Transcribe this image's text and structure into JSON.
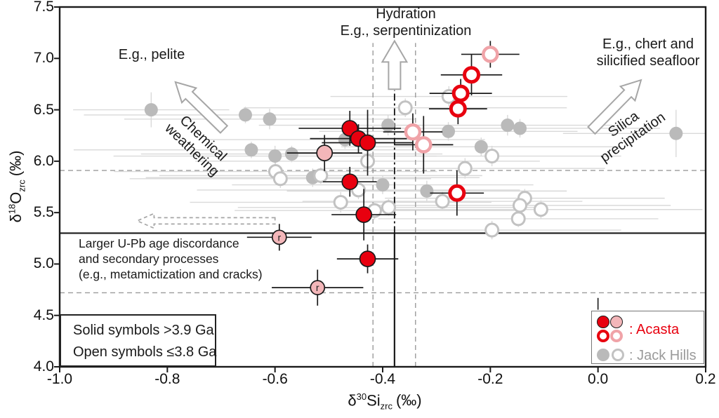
{
  "colors": {
    "red": "#e8000f",
    "pink": "#f3b6b9",
    "pinkRing": "#f0a3a8",
    "gray": "#bababa",
    "grayRing": "#c2c2c2",
    "grayBar": "#d9d9d9",
    "black": "#1a1a1a",
    "dash": "#9b9b9b",
    "arrowOutline": "#a6a6a6"
  },
  "axes": {
    "x": {
      "delta": "δ",
      "sup": "30",
      "elem": "Si",
      "sub": "zrc",
      "unit": "(‰)"
    },
    "y": {
      "delta": "δ",
      "sup": "18",
      "elem": "O",
      "sub": "zrc",
      "unit": "(‰)"
    }
  },
  "annotations": {
    "pelite": "E.g., pelite",
    "hydration_line1": "Hydration",
    "hydration_line2": "E.g., serpentinization",
    "chert_line1": "E.g., chert and",
    "chert_line2": "silicified seafloor",
    "chemical_line1": "Chemical",
    "chemical_line2": "weathering",
    "silica_line1": "Silica",
    "silica_line2": "precipitation",
    "discordance_line1": "Larger U-Pb age discordance",
    "discordance_line2": "and secondary processes",
    "discordance_line3": "(e.g., metamictization and cracks)"
  },
  "info_box": {
    "line1": "Solid symbols >3.9 Ga",
    "line2": "Open symbols ≤3.8 Ga"
  },
  "legend": {
    "acasta": ": Acasta",
    "jack_hills": ": Jack Hills"
  },
  "chart_data": {
    "type": "scatter",
    "title": "",
    "xlabel": "δ30Si_zrc (‰)",
    "ylabel": "δ18O_zrc (‰)",
    "xlim": [
      -1.0,
      0.2
    ],
    "ylim": [
      4.0,
      7.5
    ],
    "grid": false,
    "x_ticks": {
      "values": [
        -1.0,
        -0.8,
        -0.6,
        -0.4,
        -0.2,
        0.0,
        0.2
      ],
      "labels": [
        "-1.0",
        "-0.8",
        "-0.6",
        "-0.4",
        "-0.2",
        "0.0",
        "0.2"
      ]
    },
    "y_ticks": {
      "values": [
        4.0,
        4.5,
        5.0,
        5.5,
        6.0,
        6.5,
        7.0,
        7.5
      ],
      "labels": [
        "4.0",
        "4.5",
        "5.0",
        "5.5",
        "6.0",
        "6.5",
        "7.0",
        "7.5"
      ]
    },
    "series": [
      {
        "id": "jackhills-solid",
        "name": "Jack Hills >3.9 Ga (solid gray)",
        "layer": "gray",
        "style": "filled",
        "fill": "#bababa",
        "bar": "#d9d9d9",
        "bar_w": 1.4,
        "r": 9.5,
        "points": [
          [
            -0.83,
            6.5,
            0.145,
            0.17
          ],
          [
            -0.655,
            6.45,
            0.3,
            0.08
          ],
          [
            -0.61,
            6.41,
            0.27,
            0.1
          ],
          [
            -0.644,
            6.11,
            0.33,
            0.08
          ],
          [
            -0.6,
            6.05,
            0.3,
            0.1
          ],
          [
            -0.569,
            6.07,
            0.28,
            0.08
          ],
          [
            -0.47,
            6.21,
            0.26,
            0.09
          ],
          [
            -0.39,
            6.35,
            0.24,
            0.1
          ],
          [
            -0.278,
            6.29,
            0.24,
            0.09
          ],
          [
            -0.168,
            6.35,
            0.22,
            0.1
          ],
          [
            -0.145,
            6.32,
            0.26,
            0.09
          ],
          [
            -0.217,
            6.14,
            0.26,
            0.09
          ],
          [
            -0.53,
            5.84,
            0.31,
            0.09
          ],
          [
            -0.4,
            5.77,
            0.28,
            0.09
          ],
          [
            -0.318,
            5.71,
            0.26,
            0.1
          ],
          [
            0.145,
            6.27,
            0.21,
            0.23
          ]
        ]
      },
      {
        "id": "jackhills-open",
        "name": "Jack Hills ≤3.8 Ga (open gray)",
        "layer": "gray",
        "style": "open",
        "ring": "#c2c2c2",
        "ring_w": 3,
        "bar": "#d9d9d9",
        "bar_w": 1.4,
        "r": 9,
        "points": [
          [
            -0.358,
            6.52,
            0.3,
            0.09
          ],
          [
            -0.277,
            6.63,
            0.22,
            0.1
          ],
          [
            -0.599,
            5.9,
            0.3,
            0.09
          ],
          [
            -0.59,
            5.83,
            0.28,
            0.09
          ],
          [
            -0.515,
            5.86,
            0.3,
            0.08
          ],
          [
            -0.428,
            6.0,
            0.32,
            0.1
          ],
          [
            -0.445,
            5.72,
            0.3,
            0.09
          ],
          [
            -0.478,
            5.6,
            0.28,
            0.1
          ],
          [
            -0.415,
            5.52,
            0.26,
            0.09
          ],
          [
            -0.389,
            5.55,
            0.28,
            0.08
          ],
          [
            -0.247,
            5.93,
            0.26,
            0.1
          ],
          [
            -0.197,
            6.05,
            0.24,
            0.1
          ],
          [
            -0.136,
            5.64,
            0.26,
            0.09
          ],
          [
            -0.145,
            5.57,
            0.28,
            0.08
          ],
          [
            -0.106,
            5.53,
            0.3,
            0.09
          ],
          [
            -0.148,
            5.44,
            0.26,
            0.08
          ],
          [
            -0.197,
            5.33,
            0.24,
            0.09
          ],
          [
            -0.289,
            5.61,
            0.26,
            0.09
          ]
        ]
      },
      {
        "id": "acasta-solid-red",
        "name": "Acasta >3.9 Ga (solid red)",
        "layer": "colored",
        "style": "filled",
        "fill": "#e8000f",
        "edge": "#1a1a1a",
        "bar": "#1a1a1a",
        "bar_w": 1.7,
        "r": 11,
        "points": [
          [
            -0.461,
            6.32,
            0.095,
            0.17
          ],
          [
            -0.445,
            6.22,
            0.09,
            0.14
          ],
          [
            -0.428,
            6.18,
            0.085,
            0.32
          ],
          [
            -0.461,
            5.8,
            0.05,
            0.145
          ],
          [
            -0.435,
            5.48,
            0.06,
            0.25
          ],
          [
            -0.428,
            5.05,
            0.057,
            0.14
          ]
        ]
      },
      {
        "id": "acasta-solid-pink",
        "name": "Acasta >3.9 Ga (solid pink)",
        "layer": "colored",
        "style": "filled",
        "fill": "#f3b6b9",
        "edge": "#1a1a1a",
        "bar": "#1a1a1a",
        "bar_w": 1.7,
        "r": 11,
        "points": [
          [
            -0.508,
            6.08,
            0.07,
            0.175
          ]
        ]
      },
      {
        "id": "acasta-r-pink",
        "name": "Acasta discordant (pink, r)",
        "layer": "colored",
        "style": "filled",
        "fill": "#f3b6b9",
        "edge": "#1a1a1a",
        "bar": "#1a1a1a",
        "bar_w": 1.7,
        "r": 10,
        "point_label": "r",
        "points": [
          [
            -0.592,
            5.26,
            0.06,
            0.13
          ],
          [
            -0.521,
            4.77,
            0.085,
            0.175
          ]
        ]
      },
      {
        "id": "acasta-open-red",
        "name": "Acasta ≤3.8 Ga (open red)",
        "layer": "colored",
        "style": "open",
        "ring": "#e8000f",
        "ring_w": 5,
        "bar": "#1a1a1a",
        "bar_w": 1.7,
        "r": 10,
        "points": [
          [
            -0.235,
            6.84,
            0.057,
            0.2
          ],
          [
            -0.255,
            6.66,
            0.058,
            0.14
          ],
          [
            -0.26,
            6.51,
            0.054,
            0.15
          ],
          [
            -0.262,
            5.69,
            0.05,
            0.22
          ]
        ]
      },
      {
        "id": "acasta-open-pink",
        "name": "Acasta ≤3.8 Ga (open pink)",
        "layer": "colored",
        "style": "open",
        "ring": "#f0a3a8",
        "ring_w": 4.5,
        "bar": "#1a1a1a",
        "bar_w": 1.7,
        "r": 10,
        "points": [
          [
            -0.2,
            7.04,
            0.054,
            0.13
          ],
          [
            -0.344,
            6.285,
            0.055,
            0.18
          ],
          [
            -0.324,
            6.16,
            0.055,
            0.28
          ]
        ]
      }
    ],
    "reference_lines": [
      {
        "dir": "h",
        "at": 5.91,
        "from": -1.0,
        "to": 0.2,
        "style": "dashed"
      },
      {
        "dir": "h",
        "at": 4.72,
        "from": -1.0,
        "to": 0.2,
        "style": "dashed"
      },
      {
        "dir": "v",
        "at": -0.418,
        "from": 4.0,
        "to": 7.15,
        "style": "dashed"
      },
      {
        "dir": "v",
        "at": -0.339,
        "from": 4.0,
        "to": 7.15,
        "style": "dashed"
      },
      {
        "dir": "h",
        "at": 5.3,
        "from": -1.0,
        "to": 0.2,
        "style": "solid"
      },
      {
        "dir": "v",
        "at": -0.378,
        "from": 4.0,
        "to": 5.3,
        "style": "solid"
      },
      {
        "dir": "v",
        "at": -0.378,
        "from": 5.3,
        "to": 6.69,
        "style": "dashdot"
      }
    ],
    "arrows": [
      {
        "name": "hydration-arrow",
        "tail": [
          -0.378,
          6.7
        ],
        "tip": [
          -0.378,
          7.17
        ],
        "shaft": 8.5,
        "head_l": 30,
        "head_w": 17.5,
        "style": "solid"
      },
      {
        "name": "chemical-weathering-arrow",
        "tail": [
          -0.695,
          6.31
        ],
        "tip": [
          -0.785,
          6.77
        ],
        "shaft": 7,
        "head_l": 27,
        "head_w": 14.5,
        "style": "solid"
      },
      {
        "name": "silica-precipitation-arrow",
        "tail": [
          -0.012,
          6.3
        ],
        "tip": [
          0.08,
          6.79
        ],
        "shaft": 7,
        "head_l": 27,
        "head_w": 14.5,
        "style": "solid"
      },
      {
        "name": "discordance-arrow",
        "tail": [
          -0.6,
          5.42
        ],
        "tip": [
          -0.856,
          5.42
        ],
        "shaft": 4.5,
        "head_l": 24,
        "head_w": 10.5,
        "style": "dashed"
      }
    ],
    "misc_segments": [
      {
        "x1": 0.0,
        "y1": 4.67,
        "x2": 0.0,
        "y2": 4.555,
        "color": "#1a1a1a",
        "w": 1.6
      }
    ]
  }
}
